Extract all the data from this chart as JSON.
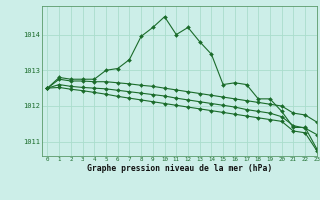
{
  "bg_color": "#cceee8",
  "grid_color": "#aaddcc",
  "line_color": "#1a6b2a",
  "title": "Graphe pression niveau de la mer (hPa)",
  "xlim": [
    -0.5,
    23
  ],
  "ylim": [
    1010.6,
    1014.8
  ],
  "yticks": [
    1011,
    1012,
    1013,
    1014
  ],
  "xticks": [
    0,
    1,
    2,
    3,
    4,
    5,
    6,
    7,
    8,
    9,
    10,
    11,
    12,
    13,
    14,
    15,
    16,
    17,
    18,
    19,
    20,
    21,
    22,
    23
  ],
  "series": [
    [
      1012.5,
      1012.8,
      1012.75,
      1012.75,
      1012.75,
      1013.0,
      1013.05,
      1013.3,
      1013.95,
      1014.2,
      1014.5,
      1014.0,
      1014.2,
      1013.8,
      1013.45,
      1012.6,
      1012.65,
      1012.6,
      1012.2,
      1012.2,
      1011.85,
      1011.4,
      1011.4,
      1010.8
    ],
    [
      1012.5,
      1012.75,
      1012.7,
      1012.7,
      1012.68,
      1012.68,
      1012.65,
      1012.62,
      1012.58,
      1012.55,
      1012.5,
      1012.45,
      1012.4,
      1012.35,
      1012.3,
      1012.25,
      1012.2,
      1012.15,
      1012.1,
      1012.05,
      1012.0,
      1011.8,
      1011.75,
      1011.55
    ],
    [
      1012.5,
      1012.6,
      1012.55,
      1012.52,
      1012.5,
      1012.48,
      1012.44,
      1012.4,
      1012.36,
      1012.32,
      1012.28,
      1012.22,
      1012.17,
      1012.12,
      1012.07,
      1012.02,
      1011.97,
      1011.9,
      1011.85,
      1011.8,
      1011.7,
      1011.45,
      1011.38,
      1011.2
    ],
    [
      1012.5,
      1012.52,
      1012.47,
      1012.43,
      1012.38,
      1012.33,
      1012.27,
      1012.22,
      1012.17,
      1012.12,
      1012.07,
      1012.02,
      1011.97,
      1011.92,
      1011.87,
      1011.82,
      1011.77,
      1011.72,
      1011.67,
      1011.62,
      1011.57,
      1011.3,
      1011.25,
      1010.75
    ]
  ]
}
